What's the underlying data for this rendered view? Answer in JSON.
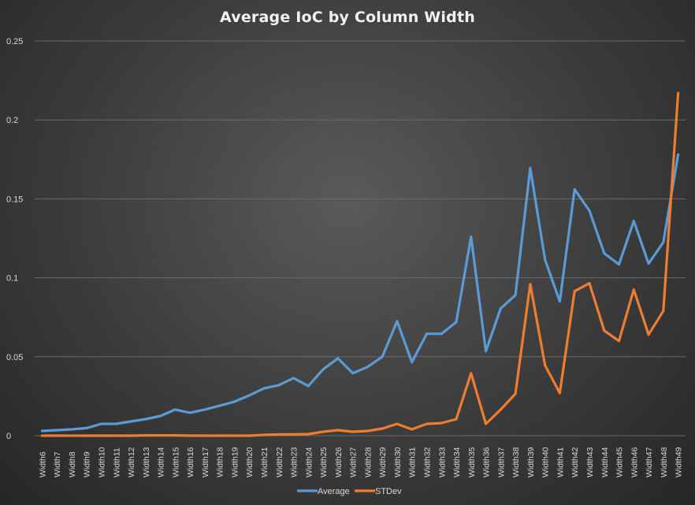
{
  "chart_data": {
    "type": "line",
    "title": "Average IoC by Column Width",
    "xlabel": "",
    "ylabel": "",
    "ylim": [
      0,
      0.25
    ],
    "yticks": [
      "0",
      "0.05",
      "0.1",
      "0.15",
      "0.2",
      "0.25"
    ],
    "grid": true,
    "legend_position": "bottom",
    "categories": [
      "Width6",
      "Width7",
      "Width8",
      "Width9",
      "Width10",
      "Width11",
      "Width12",
      "Width13",
      "Width14",
      "Width15",
      "Width16",
      "Width17",
      "Width18",
      "Width19",
      "Width20",
      "Width21",
      "Width22",
      "Width23",
      "Width24",
      "Width25",
      "Width26",
      "Width27",
      "Width28",
      "Width29",
      "Width30",
      "Width31",
      "Width32",
      "Width33",
      "Width34",
      "Width35",
      "Width36",
      "Width37",
      "Width38",
      "Width39",
      "Width40",
      "Width41",
      "Width42",
      "Width43",
      "Width44",
      "Width45",
      "Width46",
      "Width47",
      "Width48",
      "Width49"
    ],
    "series": [
      {
        "name": "Average",
        "color": "#5b9bd5",
        "values": [
          0.003,
          0.0035,
          0.004,
          0.0048,
          0.0075,
          0.0075,
          0.009,
          0.0105,
          0.0125,
          0.0165,
          0.0145,
          0.0165,
          0.019,
          0.0215,
          0.0255,
          0.03,
          0.032,
          0.0365,
          0.0315,
          0.042,
          0.049,
          0.0395,
          0.0435,
          0.05,
          0.0725,
          0.0465,
          0.0645,
          0.0645,
          0.072,
          0.126,
          0.0535,
          0.0805,
          0.089,
          0.1695,
          0.1115,
          0.085,
          0.156,
          0.1425,
          0.1155,
          0.1085,
          0.136,
          0.109,
          0.1225,
          0.178
        ]
      },
      {
        "name": "STDev",
        "color": "#ed7d31",
        "values": [
          0,
          0,
          0,
          0,
          0,
          0,
          0,
          0.0002,
          0.0002,
          0.0002,
          0,
          0,
          0,
          0,
          0,
          0.0005,
          0.0008,
          0.0008,
          0.001,
          0.0025,
          0.0035,
          0.0025,
          0.003,
          0.0045,
          0.0075,
          0.004,
          0.0075,
          0.008,
          0.0105,
          0.0395,
          0.0075,
          0.0165,
          0.0265,
          0.096,
          0.0445,
          0.027,
          0.0915,
          0.0965,
          0.0665,
          0.06,
          0.0925,
          0.064,
          0.079,
          0.217
        ]
      }
    ]
  }
}
